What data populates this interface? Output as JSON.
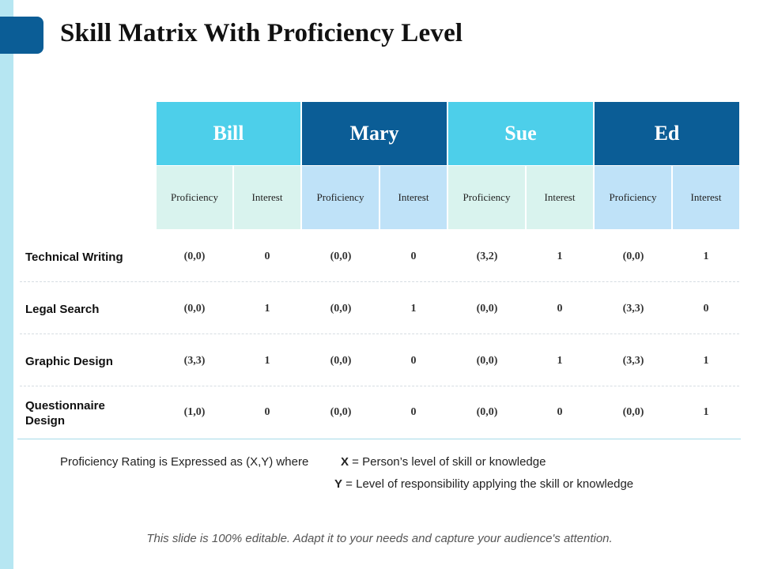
{
  "title": "Skill Matrix With Proficiency Level",
  "people": [
    "Bill",
    "Mary",
    "Sue",
    "Ed"
  ],
  "sub_headers": [
    "Proficiency",
    "Interest"
  ],
  "rows": [
    {
      "skill": [
        "Technical Writing"
      ],
      "values": [
        "(0,0)",
        "0",
        "(0,0)",
        "0",
        "(3,2)",
        "1",
        "(0,0)",
        "1"
      ]
    },
    {
      "skill": [
        "Legal Search"
      ],
      "values": [
        "(0,0)",
        "1",
        "(0,0)",
        "1",
        "(0,0)",
        "0",
        "(3,3)",
        "0"
      ]
    },
    {
      "skill": [
        "Graphic Design"
      ],
      "values": [
        "(3,3)",
        "1",
        "(0,0)",
        "0",
        "(0,0)",
        "1",
        "(3,3)",
        "1"
      ]
    },
    {
      "skill": [
        "Questionnaire",
        "Design"
      ],
      "values": [
        "(1,0)",
        "0",
        "(0,0)",
        "0",
        "(0,0)",
        "0",
        "(0,0)",
        "1"
      ]
    }
  ],
  "legend": {
    "intro": "Proficiency Rating is Expressed as (X,Y) where",
    "x_key": "X",
    "x_text": " = Person’s level of skill or knowledge",
    "y_key": "Y",
    "y_text": " = Level of responsibility applying the skill or knowledge"
  },
  "footer": "This slide is 100% editable. Adapt it to your needs and capture your audience's attention.",
  "colors": {
    "accent_dark": "#0b5d96",
    "accent_light": "#4dcfea",
    "mint": "#d9f3ee",
    "pale_blue": "#bfe2f8",
    "strip": "#b6e6f2"
  }
}
